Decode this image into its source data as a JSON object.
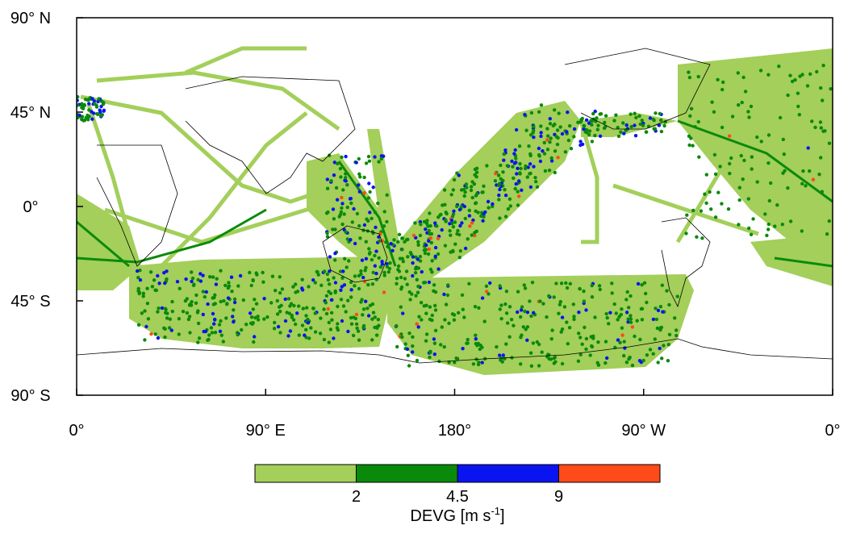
{
  "map": {
    "xticks": [
      "0°",
      "90° E",
      "180°",
      "90° W",
      "0°"
    ],
    "yticks": [
      "90° N",
      "45° N",
      "0°",
      "45° S",
      "90° S"
    ],
    "colorbar": {
      "boundaries": [
        2,
        4.5,
        9
      ],
      "colors": [
        "#a3cf5a",
        "#0a8a0a",
        "#0a14f0",
        "#ff4a1a"
      ],
      "label": "DEVG [m s",
      "label_sup": "-1",
      "label_end": "]"
    }
  }
}
